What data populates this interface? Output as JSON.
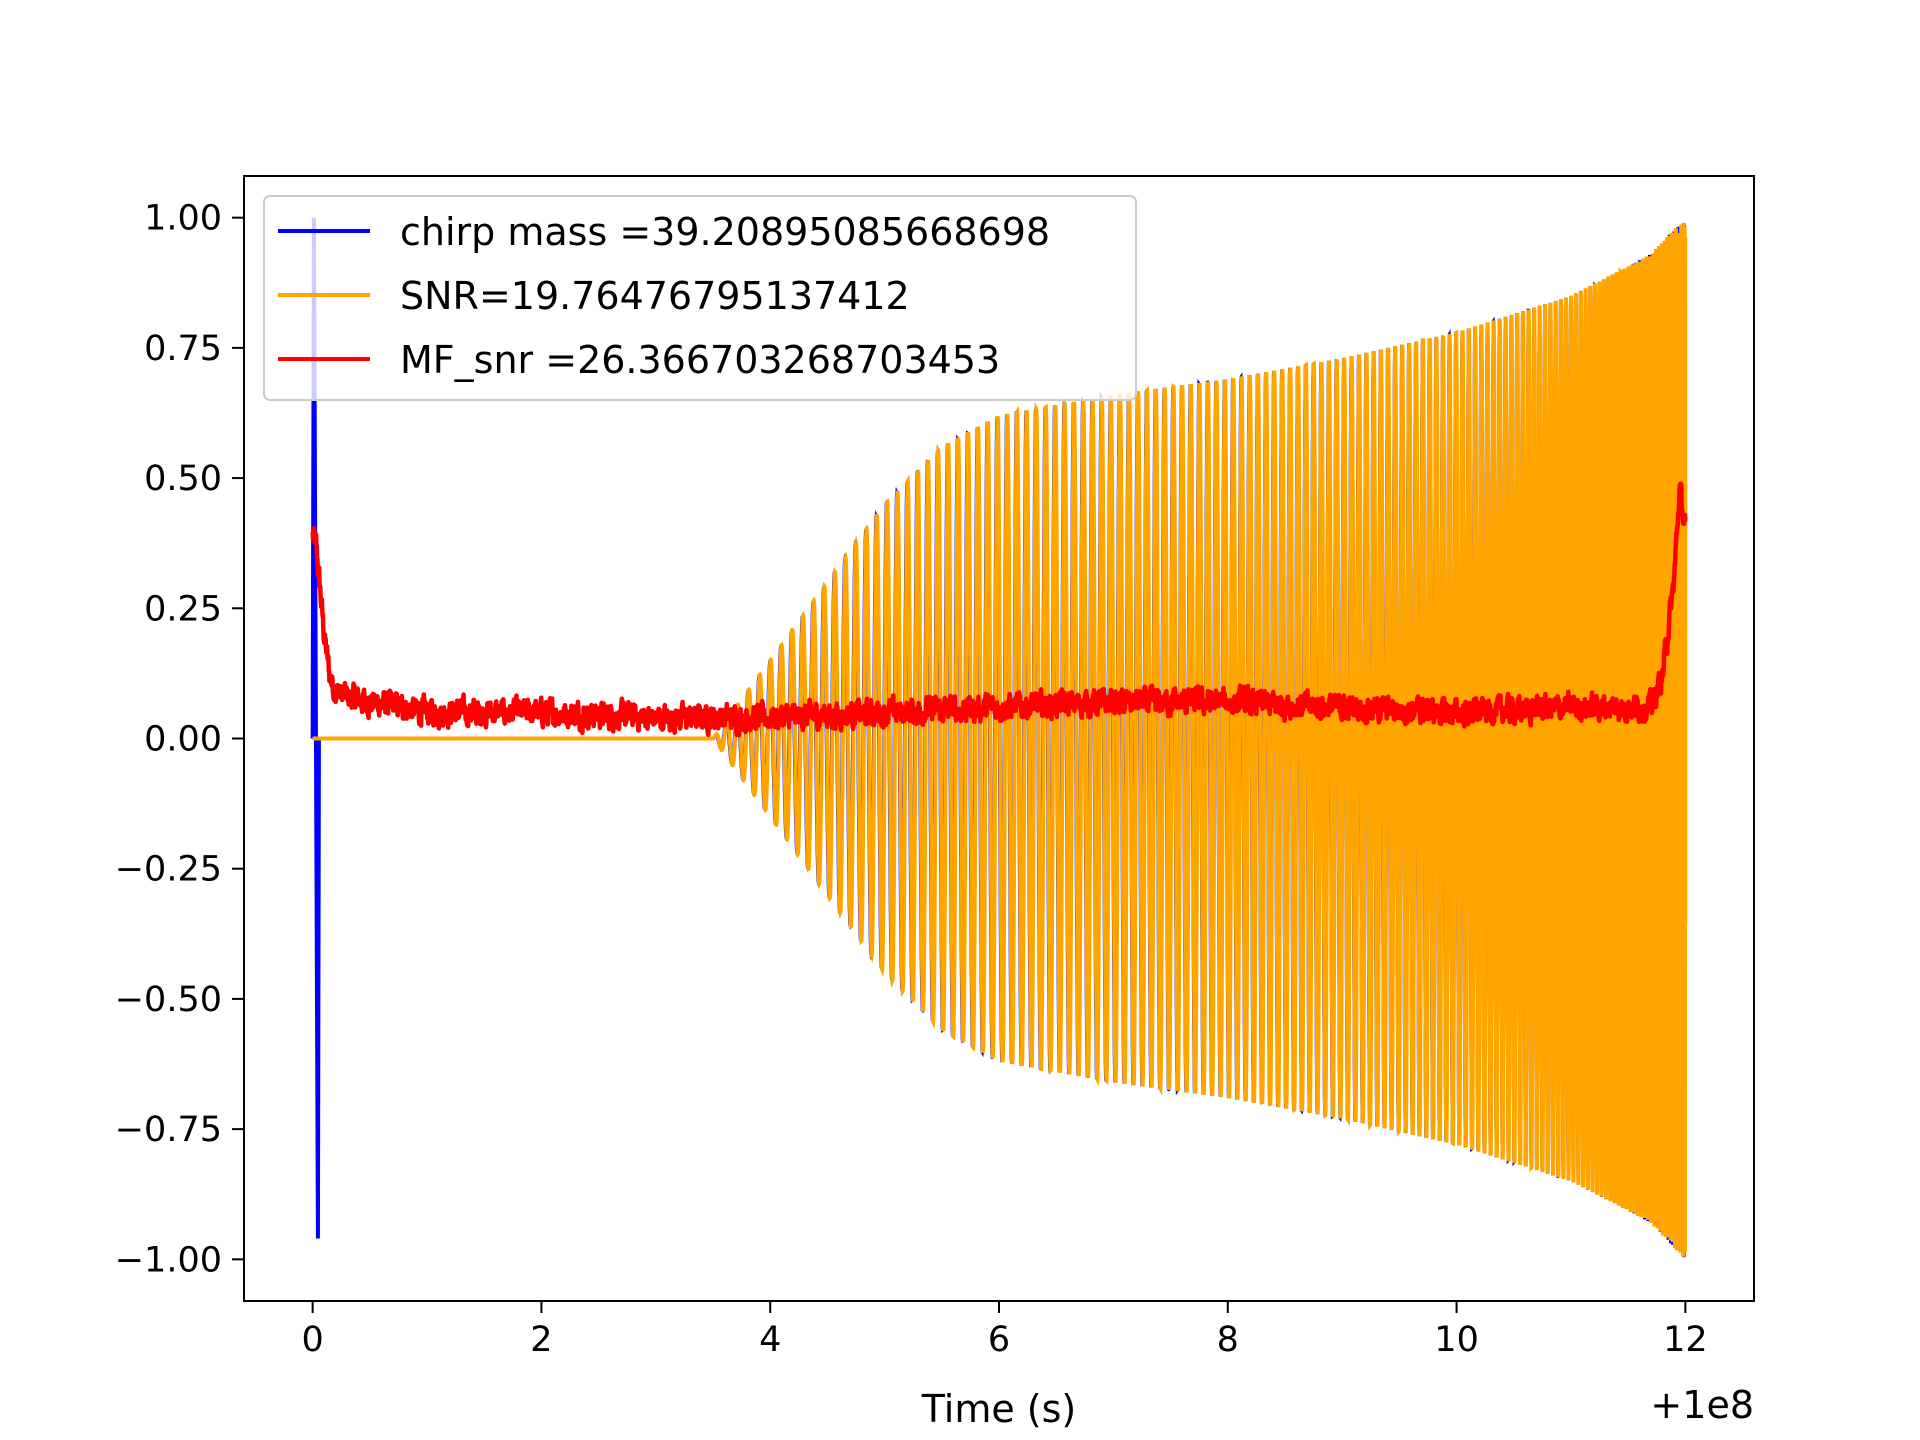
{
  "chart_data": {
    "type": "line",
    "title": "",
    "xlabel": "Time (s)",
    "ylabel": "",
    "x_offset_label": "+1e8",
    "xlim": [
      -0.6,
      12.6
    ],
    "ylim": [
      -1.08,
      1.08
    ],
    "xticks": [
      0,
      2,
      4,
      6,
      8,
      10,
      12
    ],
    "xtick_labels": [
      "0",
      "2",
      "4",
      "6",
      "8",
      "10",
      "12"
    ],
    "yticks": [
      1.0,
      0.75,
      0.5,
      0.25,
      0.0,
      -0.25,
      -0.5,
      -0.75,
      -1.0
    ],
    "ytick_labels": [
      "1.00",
      "0.75",
      "0.50",
      "0.25",
      "0.00",
      "−0.25",
      "−0.50",
      "−0.75",
      "−1.00"
    ],
    "grid": false,
    "legend_position": "top-left",
    "series": [
      {
        "name": "chirp mass =39.20895085668698",
        "color": "#0000ff",
        "kind": "chirp",
        "start_time": 3.5,
        "end_time": 12.0,
        "cycles": 140,
        "envelope": [
          [
            3.5,
            0.0
          ],
          [
            4.0,
            0.15
          ],
          [
            4.5,
            0.3
          ],
          [
            5.0,
            0.45
          ],
          [
            5.5,
            0.56
          ],
          [
            6.0,
            0.62
          ],
          [
            7.0,
            0.66
          ],
          [
            8.0,
            0.69
          ],
          [
            9.0,
            0.73
          ],
          [
            10.0,
            0.78
          ],
          [
            11.0,
            0.85
          ],
          [
            11.7,
            0.93
          ],
          [
            12.0,
            1.0
          ]
        ],
        "spike_time": 0.02,
        "spike_min": -0.96,
        "spike_max": 1.0
      },
      {
        "name": "SNR=19.76476795137412",
        "color": "#ffa500",
        "kind": "chirp",
        "start_time": 3.5,
        "end_time": 12.0,
        "cycles": 140,
        "envelope": [
          [
            3.5,
            0.0
          ],
          [
            4.0,
            0.15
          ],
          [
            4.5,
            0.3
          ],
          [
            5.0,
            0.45
          ],
          [
            5.5,
            0.56
          ],
          [
            6.0,
            0.62
          ],
          [
            7.0,
            0.66
          ],
          [
            8.0,
            0.69
          ],
          [
            9.0,
            0.73
          ],
          [
            10.0,
            0.78
          ],
          [
            11.0,
            0.85
          ],
          [
            11.7,
            0.93
          ],
          [
            12.0,
            1.0
          ]
        ]
      },
      {
        "name": "MF_snr =26.366703268703453",
        "color": "#ff0000",
        "kind": "noise",
        "x": [
          0.0,
          0.03,
          0.06,
          0.1,
          0.15,
          0.2,
          0.3,
          0.5,
          0.8,
          1.0,
          2.0,
          3.0,
          3.5,
          4.0,
          5.0,
          6.0,
          7.0,
          8.0,
          9.0,
          10.0,
          11.0,
          11.7,
          11.8,
          11.9,
          11.95,
          12.0
        ],
        "y": [
          0.39,
          0.37,
          0.3,
          0.2,
          0.12,
          0.09,
          0.08,
          0.07,
          0.06,
          0.05,
          0.05,
          0.04,
          0.04,
          0.04,
          0.05,
          0.06,
          0.07,
          0.07,
          0.06,
          0.05,
          0.06,
          0.06,
          0.12,
          0.3,
          0.48,
          0.4
        ],
        "noise_amplitude": 0.035
      }
    ]
  }
}
